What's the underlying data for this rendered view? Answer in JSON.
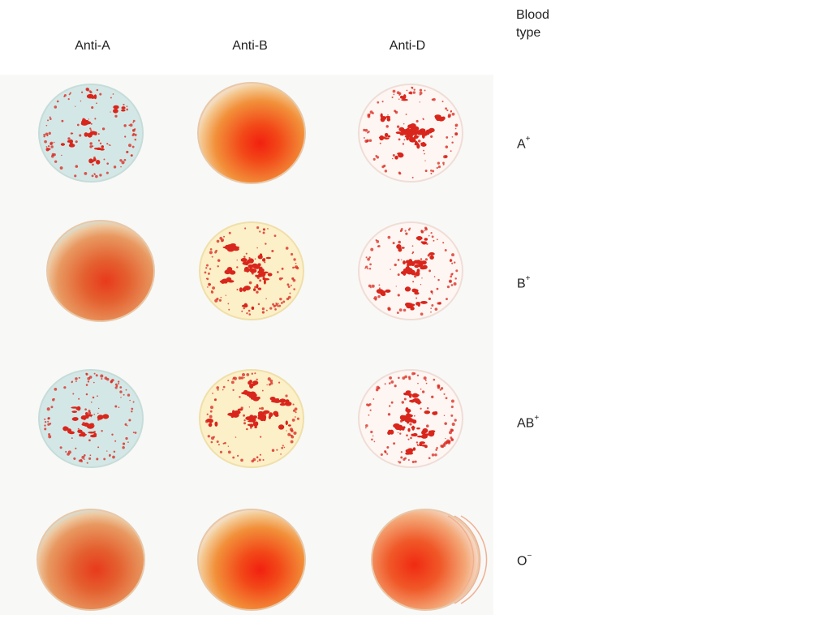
{
  "header": {
    "columns": [
      "Anti-A",
      "Anti-B",
      "Anti-D"
    ],
    "legend_title_line1": "Blood",
    "legend_title_line2": "type"
  },
  "rows": [
    {
      "base": "A",
      "sign": "+",
      "reactions": [
        "clump-blue",
        "smooth",
        "clump-clear"
      ]
    },
    {
      "base": "B",
      "sign": "+",
      "reactions": [
        "smooth",
        "clump-yellow",
        "clump-clear"
      ]
    },
    {
      "base": "AB",
      "sign": "+",
      "reactions": [
        "clump-blue",
        "clump-yellow",
        "clump-clear"
      ]
    },
    {
      "base": "O",
      "sign": "−",
      "reactions": [
        "smooth",
        "smooth",
        "smooth"
      ]
    }
  ],
  "colors": {
    "blue_reagent": "#d3e8e6",
    "yellow_reagent": "#fbf0c8",
    "clear_reagent": "#fdf6f2",
    "clump_red": "#d9261c",
    "smooth_center": "#ee2a14",
    "smooth_edge": "#e8a070"
  }
}
